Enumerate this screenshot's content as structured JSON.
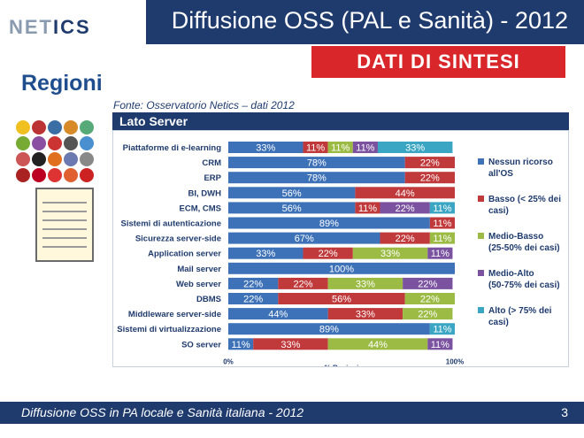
{
  "header": {
    "logo_part1": "NET",
    "logo_part2": "ICS",
    "title": "Diffusione OSS (PAL e Sanità) - 2012",
    "banner": "DATI DI SINTESI"
  },
  "section_title": "Regioni",
  "source": "Fonte: Osservatorio Netics – dati 2012",
  "panel_title": "Lato Server",
  "footer": {
    "text": "Diffusione OSS in PA locale e Sanità italiana - 2012",
    "page": "3"
  },
  "colors": {
    "nessun": "#3e72b8",
    "basso": "#c0393b",
    "medio_basso": "#9bbb45",
    "medio_alto": "#7a52a0",
    "alto": "#3aa6c4"
  },
  "chart_data": {
    "type": "bar",
    "orientation": "horizontal",
    "stacked": "percent",
    "xlabel": "% Regioni",
    "x_ticks": [
      "0%",
      "100%"
    ],
    "categories": [
      "Piattaforme di e-learning",
      "CRM",
      "ERP",
      "BI, DWH",
      "ECM, CMS",
      "Sistemi di autenticazione",
      "Sicurezza server-side",
      "Application server",
      "Mail server",
      "Web server",
      "DBMS",
      "Middleware server-side",
      "Sistemi di virtualizzazione",
      "SO server"
    ],
    "series": [
      {
        "name": "Nessun ricorso all'OS",
        "color": "#3e72b8",
        "values": [
          33,
          78,
          78,
          56,
          56,
          89,
          67,
          33,
          100,
          22,
          22,
          44,
          89,
          11
        ]
      },
      {
        "name": "Basso (< 25% dei casi)",
        "color": "#c0393b",
        "values": [
          11,
          22,
          22,
          44,
          11,
          11,
          22,
          22,
          0,
          22,
          56,
          33,
          0,
          33
        ]
      },
      {
        "name": "Medio-Basso (25-50% dei casi)",
        "color": "#9bbb45",
        "values": [
          11,
          0,
          0,
          0,
          0,
          0,
          11,
          33,
          0,
          33,
          22,
          22,
          0,
          44
        ]
      },
      {
        "name": "Medio-Alto (50-75% dei casi)",
        "color": "#7a52a0",
        "values": [
          11,
          0,
          0,
          0,
          22,
          0,
          0,
          11,
          0,
          22,
          0,
          0,
          0,
          11
        ]
      },
      {
        "name": "Alto (> 75% dei casi)",
        "color": "#3aa6c4",
        "values": [
          33,
          0,
          0,
          0,
          11,
          0,
          0,
          0,
          0,
          0,
          0,
          0,
          11,
          0
        ]
      }
    ],
    "legend_position": "right",
    "grid": false
  }
}
